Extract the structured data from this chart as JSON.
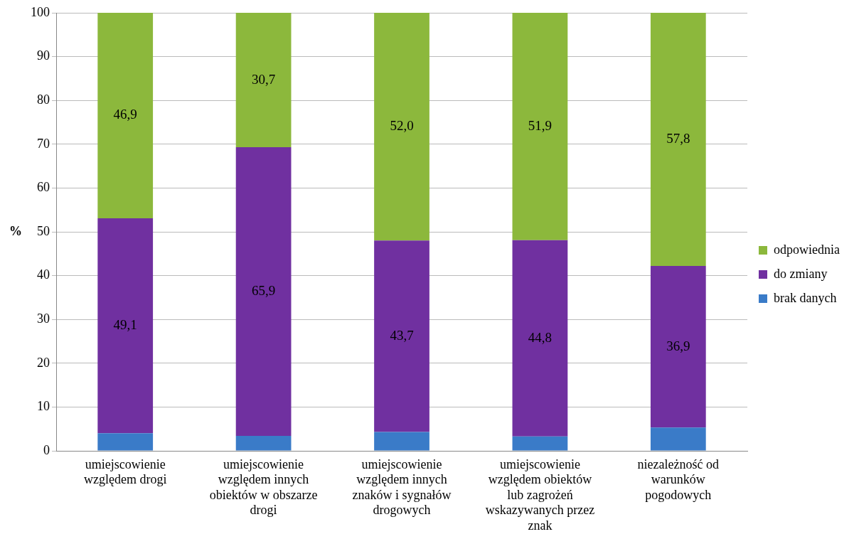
{
  "chart_data": {
    "type": "bar",
    "stacked": true,
    "ylabel": "%",
    "categories": [
      "umiejscowienie względem drogi",
      "umiejscowienie względem innych obiektów w obszarze drogi",
      "umiejscowienie względem innych znaków i sygnałów drogowych",
      "umiejscowienie względem obiektów lub zagrożeń wskazywanych przez znak",
      "niezależność od warunków pogodowych"
    ],
    "series": [
      {
        "name": "brak danych",
        "color": "#3a7bc8",
        "values": [
          4.0,
          3.4,
          4.3,
          3.3,
          5.3
        ],
        "value_labels": [
          null,
          null,
          null,
          null,
          null
        ]
      },
      {
        "name": "do zmiany",
        "color": "#7030a0",
        "values": [
          49.1,
          65.9,
          43.7,
          44.8,
          36.9
        ],
        "value_labels": [
          "49,1",
          "65,9",
          "43,7",
          "44,8",
          "36,9"
        ]
      },
      {
        "name": "odpowiednia",
        "color": "#8cb83c",
        "values": [
          46.9,
          30.7,
          52.0,
          51.9,
          57.8
        ],
        "value_labels": [
          "46,9",
          "30,7",
          "52,0",
          "51,9",
          "57,8"
        ]
      }
    ],
    "ylim": [
      0,
      100
    ],
    "yticks": [
      0,
      10,
      20,
      30,
      40,
      50,
      60,
      70,
      80,
      90,
      100
    ],
    "grid": "y",
    "legend": "right"
  }
}
